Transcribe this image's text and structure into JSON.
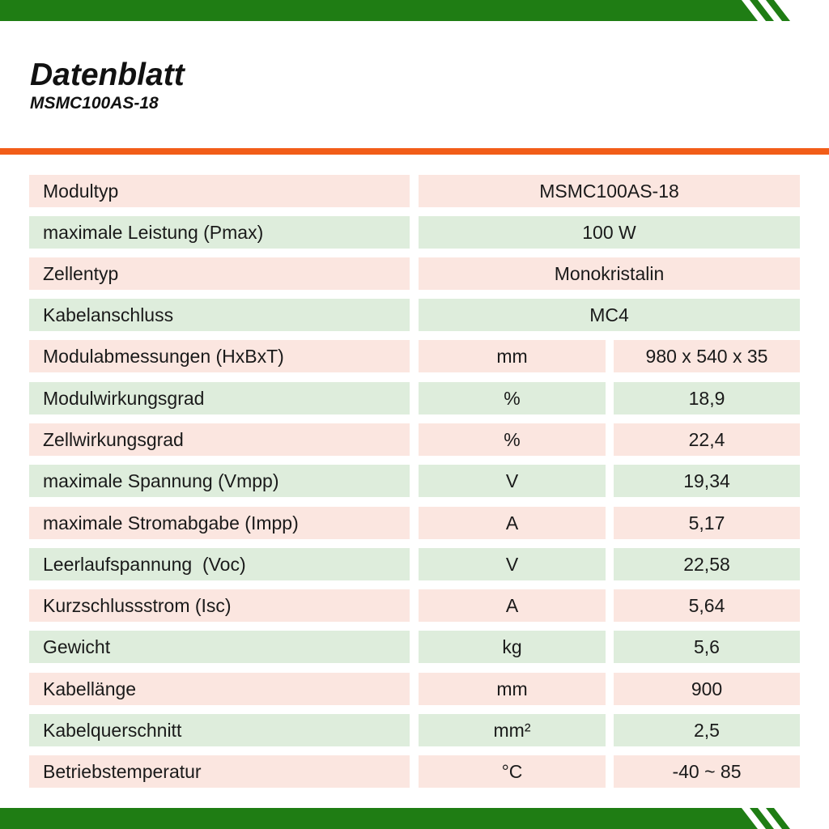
{
  "header": {
    "title": "Datenblatt",
    "model": "MSMC100AS-18"
  },
  "colors": {
    "green_band": "#1f7d14",
    "orange_rule": "#f25d18",
    "row_pink": "#fbe6e0",
    "row_green": "#deeddc"
  },
  "rows": [
    {
      "label": "Modultyp",
      "unit": "",
      "value": "MSMC100AS-18"
    },
    {
      "label": "maximale Leistung (Pmax)",
      "unit": "",
      "value": "100 W"
    },
    {
      "label": "Zellentyp",
      "unit": "",
      "value": "Monokristalin"
    },
    {
      "label": "Kabelanschluss",
      "unit": "",
      "value": "MC4"
    },
    {
      "label": "Modulabmessungen (HxBxT)",
      "unit": "mm",
      "value": "980 x 540 x 35"
    },
    {
      "label": "Modulwirkungsgrad",
      "unit": "%",
      "value": "18,9"
    },
    {
      "label": "Zellwirkungsgrad",
      "unit": "%",
      "value": "22,4"
    },
    {
      "label": "maximale Spannung (Vmpp)",
      "unit": "V",
      "value": "19,34"
    },
    {
      "label": "maximale Stromabgabe (Impp)",
      "unit": "A",
      "value": "5,17"
    },
    {
      "label": "Leerlaufspannung  (Voc)",
      "unit": "V",
      "value": "22,58"
    },
    {
      "label": "Kurzschlussstrom (Isc)",
      "unit": "A",
      "value": "5,64"
    },
    {
      "label": "Gewicht",
      "unit": "kg",
      "value": "5,6"
    },
    {
      "label": "Kabellänge",
      "unit": "mm",
      "value": "900"
    },
    {
      "label": "Kabelquerschnitt",
      "unit": "mm²",
      "value": "2,5"
    },
    {
      "label": "Betriebstemperatur",
      "unit": "°C",
      "value": "-40 ~ 85"
    }
  ]
}
